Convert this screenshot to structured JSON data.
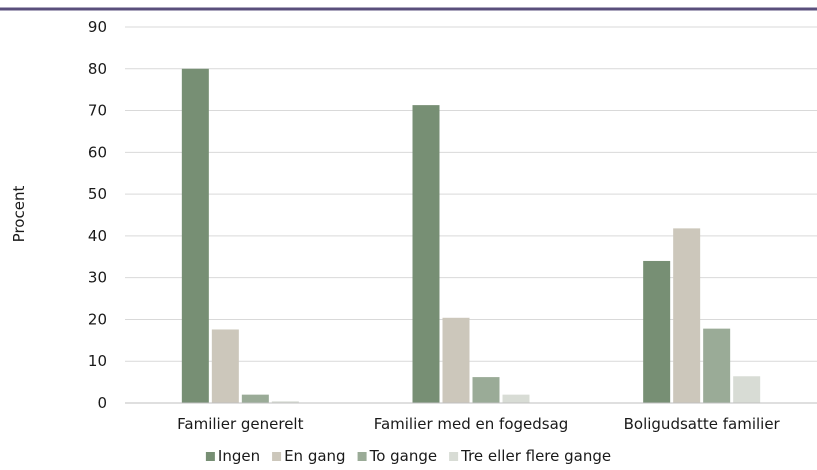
{
  "chart_data": {
    "type": "bar",
    "title": "",
    "xlabel": "",
    "ylabel": "Procent",
    "ylim": [
      0,
      90
    ],
    "yticks": [
      0,
      10,
      20,
      30,
      40,
      50,
      60,
      70,
      80,
      90
    ],
    "grid": true,
    "legend_position": "bottom",
    "top_rule_color": "#5a4f7c",
    "categories": [
      "Familier generelt",
      "Familier med en fogedsag",
      "Boligudsatte familier"
    ],
    "series": [
      {
        "name": "Ingen",
        "color": "#778f74",
        "values": [
          80,
          71.3,
          34
        ]
      },
      {
        "name": "En gang",
        "color": "#ccc7bb",
        "values": [
          17.6,
          20.4,
          41.8
        ]
      },
      {
        "name": "To gange",
        "color": "#9aab97",
        "values": [
          2,
          6.2,
          17.8
        ]
      },
      {
        "name": "Tre eller flere gange",
        "color": "#d8dcd5",
        "values": [
          0.4,
          2,
          6.4
        ]
      }
    ]
  }
}
